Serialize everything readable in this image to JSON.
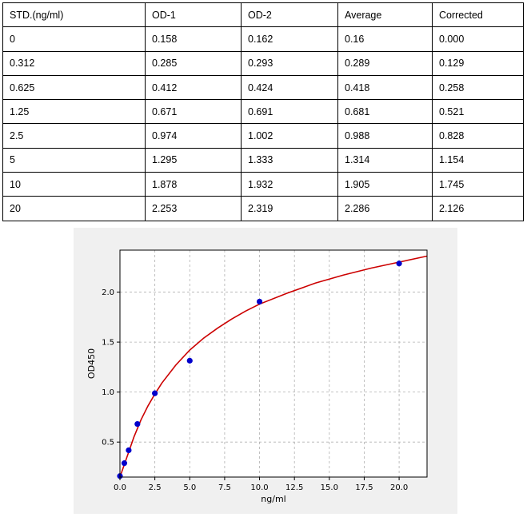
{
  "table": {
    "headers": [
      "STD.(ng/ml)",
      "OD-1",
      "OD-2",
      "Average",
      "Corrected"
    ],
    "rows": [
      [
        "0",
        "0.158",
        "0.162",
        "0.16",
        "0.000"
      ],
      [
        "0.312",
        "0.285",
        "0.293",
        "0.289",
        "0.129"
      ],
      [
        "0.625",
        "0.412",
        "0.424",
        "0.418",
        "0.258"
      ],
      [
        "1.25",
        "0.671",
        "0.691",
        "0.681",
        "0.521"
      ],
      [
        "2.5",
        "0.974",
        "1.002",
        "0.988",
        "0.828"
      ],
      [
        "5",
        "1.295",
        "1.333",
        "1.314",
        "1.154"
      ],
      [
        "10",
        "1.878",
        "1.932",
        "1.905",
        "1.745"
      ],
      [
        "20",
        "2.253",
        "2.319",
        "2.286",
        "2.126"
      ]
    ]
  },
  "chart_data": {
    "type": "scatter",
    "xlabel": "ng/ml",
    "ylabel": "OD450",
    "xlim": [
      0,
      22
    ],
    "ylim": [
      0.15,
      2.42
    ],
    "x_ticks": [
      "0.0",
      "2.5",
      "5.0",
      "7.5",
      "10.0",
      "12.5",
      "15.0",
      "17.5",
      "20.0"
    ],
    "y_ticks": [
      "0.5",
      "1.0",
      "1.5",
      "2.0"
    ],
    "grid": true,
    "points": {
      "x": [
        0,
        0.312,
        0.625,
        1.25,
        2.5,
        5,
        10,
        20
      ],
      "y": [
        0.16,
        0.289,
        0.418,
        0.681,
        0.988,
        1.314,
        1.905,
        2.286
      ],
      "color": "#0000cc"
    },
    "fit_curve": {
      "x": [
        0,
        0.25,
        0.5,
        0.75,
        1,
        1.5,
        2,
        2.5,
        3,
        4,
        5,
        6,
        7,
        8,
        9,
        10,
        12,
        14,
        16,
        18,
        20,
        22
      ],
      "y": [
        0.15,
        0.25,
        0.35,
        0.45,
        0.55,
        0.72,
        0.86,
        0.98,
        1.09,
        1.27,
        1.42,
        1.54,
        1.64,
        1.73,
        1.81,
        1.88,
        1.99,
        2.09,
        2.17,
        2.24,
        2.3,
        2.36
      ],
      "color": "#cc0000"
    }
  }
}
